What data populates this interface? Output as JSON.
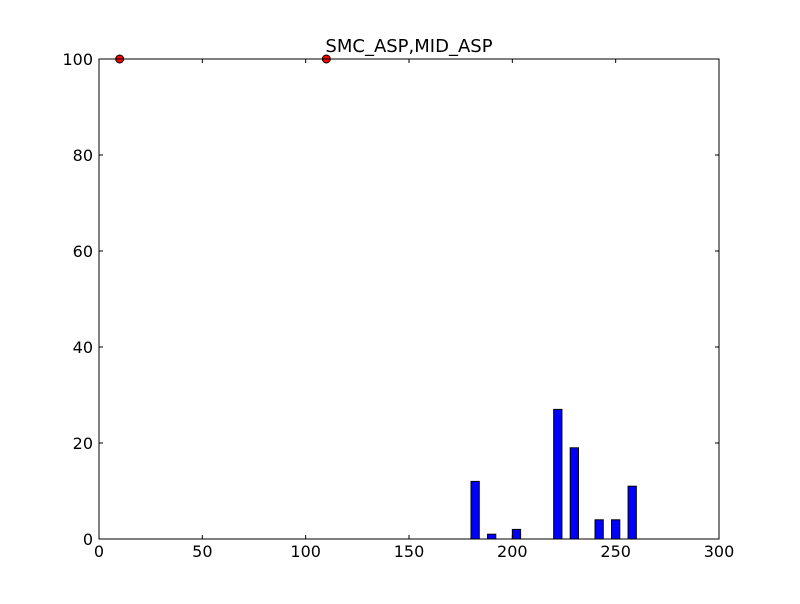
{
  "chart_data": {
    "type": "bar",
    "title": "SMC_ASP,MID_ASP",
    "xlabel": "",
    "ylabel": "",
    "xlim": [
      0,
      300
    ],
    "ylim": [
      0,
      100
    ],
    "xticks": [
      0,
      50,
      100,
      150,
      200,
      250,
      300
    ],
    "yticks": [
      0,
      20,
      40,
      60,
      80,
      100
    ],
    "grid": false,
    "bars": {
      "bin_width": 4,
      "x": [
        180,
        188,
        200,
        220,
        228,
        240,
        248,
        256
      ],
      "values": [
        12,
        1,
        2,
        27,
        19,
        4,
        4,
        11
      ],
      "color": "#0000ff",
      "edge_color": "#000000"
    },
    "markers": {
      "x": [
        10,
        110
      ],
      "y": [
        100,
        100
      ],
      "color": "#ff0000",
      "edge_color": "#000000"
    }
  }
}
